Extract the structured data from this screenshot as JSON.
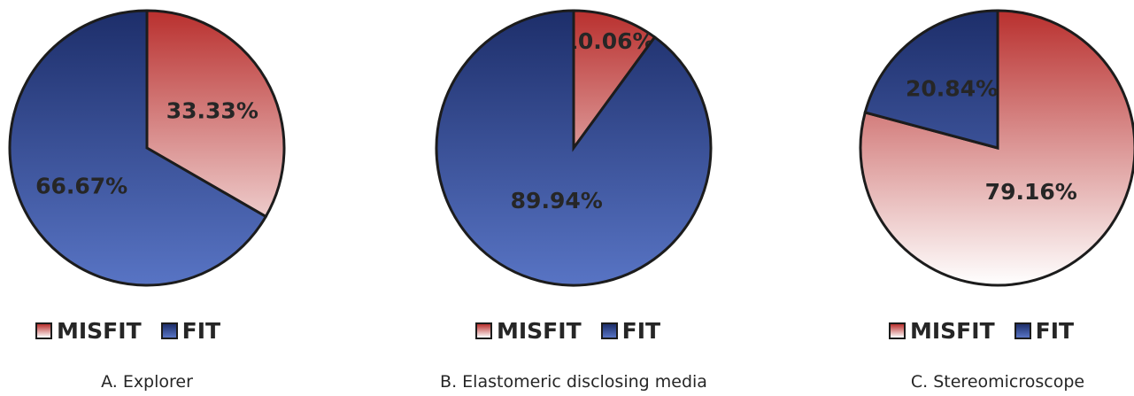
{
  "chart_data": [
    {
      "type": "pie",
      "caption": "A. Explorer",
      "slices": [
        {
          "label": "MISFIT",
          "value": 33.33,
          "display": "33.33%",
          "color_top": "#b9302e",
          "color_bottom": "#ffffff"
        },
        {
          "label": "FIT",
          "value": 66.67,
          "display": "66.67%",
          "color_top": "#1d2e6a",
          "color_bottom": "#5874c4"
        }
      ],
      "legend": [
        "MISFIT",
        "FIT"
      ],
      "legend_position": "bottom"
    },
    {
      "type": "pie",
      "caption": "B. Elastomeric disclosing media",
      "slices": [
        {
          "label": "MISFIT",
          "value": 10.06,
          "display": "10.06%",
          "color_top": "#b9302e",
          "color_bottom": "#ffffff"
        },
        {
          "label": "FIT",
          "value": 89.94,
          "display": "89.94%",
          "color_top": "#1d2e6a",
          "color_bottom": "#5874c4"
        }
      ],
      "legend": [
        "MISFIT",
        "FIT"
      ],
      "legend_position": "bottom"
    },
    {
      "type": "pie",
      "caption": "C. Stereomicroscope",
      "slices": [
        {
          "label": "MISFIT",
          "value": 79.16,
          "display": "79.16%",
          "color_top": "#b9302e",
          "color_bottom": "#ffffff"
        },
        {
          "label": "FIT",
          "value": 20.84,
          "display": "20.84%",
          "color_top": "#1d2e6a",
          "color_bottom": "#5874c4"
        }
      ],
      "legend": [
        "MISFIT",
        "FIT"
      ],
      "legend_position": "bottom"
    }
  ]
}
